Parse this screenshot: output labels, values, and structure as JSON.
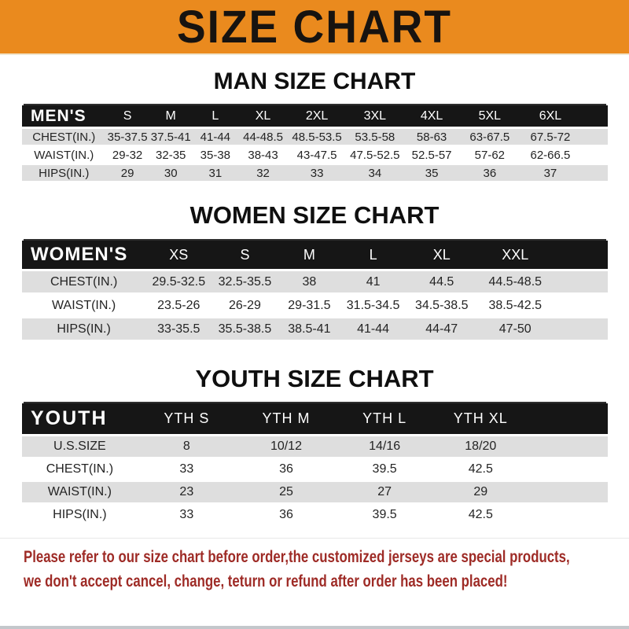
{
  "banner": {
    "title": "SIZE CHART"
  },
  "sections": [
    {
      "heading": "MAN SIZE CHART",
      "header_label": "MEN'S",
      "columns": [
        "S",
        "M",
        "L",
        "XL",
        "2XL",
        "3XL",
        "4XL",
        "5XL",
        "6XL"
      ],
      "rows": [
        {
          "label": "CHEST(IN.)",
          "values": [
            "35-37.5",
            "37.5-41",
            "41-44",
            "44-48.5",
            "48.5-53.5",
            "53.5-58",
            "58-63",
            "63-67.5",
            "67.5-72"
          ]
        },
        {
          "label": "WAIST(IN.)",
          "values": [
            "29-32",
            "32-35",
            "35-38",
            "38-43",
            "43-47.5",
            "47.5-52.5",
            "52.5-57",
            "57-62",
            "62-66.5"
          ]
        },
        {
          "label": "HIPS(IN.)",
          "values": [
            "29",
            "30",
            "31",
            "32",
            "33",
            "34",
            "35",
            "36",
            "37"
          ]
        }
      ]
    },
    {
      "heading": "WOMEN SIZE CHART",
      "header_label": "WOMEN'S",
      "columns": [
        "XS",
        "S",
        "M",
        "L",
        "XL",
        "XXL"
      ],
      "rows": [
        {
          "label": "CHEST(IN.)",
          "values": [
            "29.5-32.5",
            "32.5-35.5",
            "38",
            "41",
            "44.5",
            "44.5-48.5"
          ]
        },
        {
          "label": "WAIST(IN.)",
          "values": [
            "23.5-26",
            "26-29",
            "29-31.5",
            "31.5-34.5",
            "34.5-38.5",
            "38.5-42.5"
          ]
        },
        {
          "label": "HIPS(IN.)",
          "values": [
            "33-35.5",
            "35.5-38.5",
            "38.5-41",
            "41-44",
            "44-47",
            "47-50"
          ]
        }
      ]
    },
    {
      "heading": "YOUTH SIZE CHART",
      "header_label": "YOUTH",
      "columns": [
        "YTH S",
        "YTH M",
        "YTH L",
        "YTH XL"
      ],
      "rows": [
        {
          "label": "U.S.SIZE",
          "values": [
            "8",
            "10/12",
            "14/16",
            "18/20"
          ]
        },
        {
          "label": "CHEST(IN.)",
          "values": [
            "33",
            "36",
            "39.5",
            "42.5"
          ]
        },
        {
          "label": "WAIST(IN.)",
          "values": [
            "23",
            "25",
            "27",
            "29"
          ]
        },
        {
          "label": "HIPS(IN.)",
          "values": [
            "33",
            "36",
            "39.5",
            "42.5"
          ]
        }
      ]
    }
  ],
  "footer": {
    "line1": "Please refer to our size chart before order,the customized jerseys are special products,",
    "line2": "we don't accept cancel, change, teturn or refund after order has been placed!"
  },
  "colors": {
    "banner_bg": "#EA8A1E",
    "banner_text": "#171310",
    "header_bar_bg": "#161616",
    "header_bar_text": "#FFFFFF",
    "alt_row_bg": "#DEDEDE",
    "data_text": "#242424",
    "footer_text": "#9E2B26"
  }
}
